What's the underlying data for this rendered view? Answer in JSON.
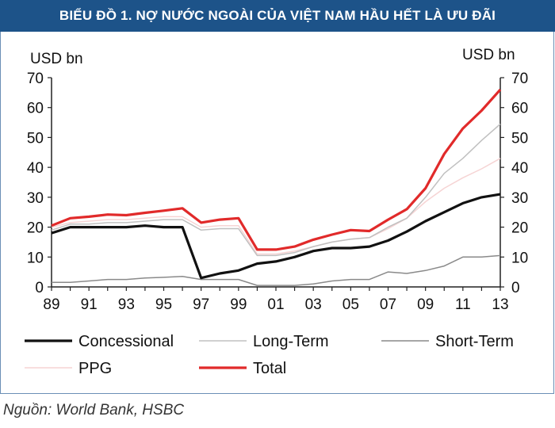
{
  "header": {
    "title": "BIỂU ĐỒ 1. NỢ NƯỚC NGOÀI CỦA VIỆT NAM HẦU HẾT LÀ ƯU ĐÃI"
  },
  "footer": {
    "source": "Nguồn: World Bank, HSBC"
  },
  "colors": {
    "title_bg": "#1d5389",
    "concessional": "#111111",
    "long_term": "#c0c0c0",
    "short_term": "#8a8a8a",
    "ppg": "#f6d4d4",
    "total": "#e12a2a"
  },
  "chart_data": {
    "type": "line",
    "title": "",
    "ylabel_left": "USD bn",
    "ylabel_right": "USD bn",
    "ylim": [
      0,
      70
    ],
    "yticks": [
      0,
      10,
      20,
      30,
      40,
      50,
      60,
      70
    ],
    "xlim": [
      1989,
      2013
    ],
    "xticks": [
      "89",
      "91",
      "93",
      "95",
      "97",
      "99",
      "01",
      "03",
      "05",
      "07",
      "09",
      "11",
      "13"
    ],
    "x": [
      1989,
      1990,
      1991,
      1992,
      1993,
      1994,
      1995,
      1996,
      1997,
      1998,
      1999,
      2000,
      2001,
      2002,
      2003,
      2004,
      2005,
      2006,
      2007,
      2008,
      2009,
      2010,
      2011,
      2012,
      2013
    ],
    "legend_position": "bottom",
    "series": [
      {
        "name": "Concessional",
        "key": "concessional",
        "values": [
          18,
          20,
          20,
          20,
          20,
          20.5,
          20,
          20,
          3,
          4.5,
          5.5,
          7.8,
          8.5,
          10,
          12,
          13,
          13,
          13.5,
          15.5,
          18.5,
          22,
          25,
          28,
          30,
          31
        ]
      },
      {
        "name": "Long-Term",
        "key": "long_term",
        "values": [
          19,
          21,
          21,
          21.5,
          21.5,
          22,
          22.5,
          22.5,
          19,
          19.5,
          19.5,
          10.5,
          10.5,
          11.5,
          13.5,
          15,
          16,
          16.5,
          20,
          23,
          30,
          38,
          43,
          49,
          54.5
        ]
      },
      {
        "name": "Short-Term",
        "key": "short_term",
        "values": [
          1.5,
          1.5,
          2,
          2.5,
          2.5,
          3,
          3.2,
          3.5,
          2.5,
          2.5,
          2.5,
          0.5,
          0.5,
          0.5,
          1,
          2,
          2.5,
          2.5,
          5,
          4.5,
          5.5,
          7,
          10,
          10,
          10.5
        ]
      },
      {
        "name": "PPG",
        "key": "ppg",
        "values": [
          20,
          21.5,
          22,
          22.5,
          22.5,
          23,
          23.5,
          23.5,
          20,
          20.5,
          20.5,
          11,
          11,
          12,
          13.5,
          15,
          16,
          16.5,
          19.5,
          23,
          28.5,
          33,
          36.5,
          39.5,
          43
        ]
      },
      {
        "name": "Total",
        "key": "total",
        "values": [
          20.5,
          23,
          23.5,
          24.2,
          24,
          24.8,
          25.5,
          26.3,
          21.5,
          22.5,
          23,
          12.5,
          12.5,
          13.5,
          15.8,
          17.5,
          19,
          18.7,
          22.5,
          26,
          33,
          44.5,
          53,
          59,
          66
        ]
      }
    ]
  }
}
